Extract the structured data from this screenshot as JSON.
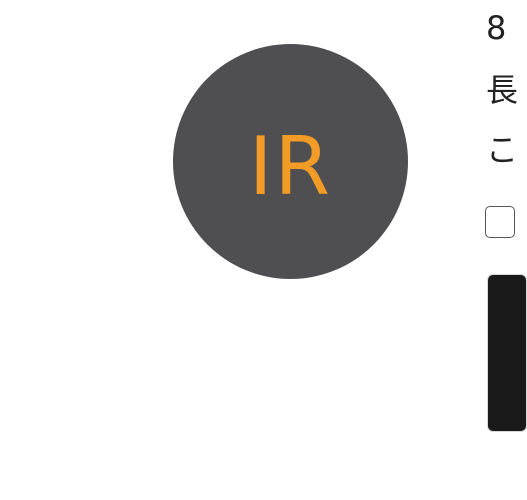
{
  "avatar": {
    "initials": "IR",
    "background_color": "#4f4e50",
    "text_color": "#f29b26"
  },
  "side_text": {
    "line_1": "8",
    "line_2": "長",
    "line_3": "こ"
  },
  "colors": {
    "page_background": "#ffffff",
    "text": "#222222",
    "card_background": "#1a1a1a"
  }
}
